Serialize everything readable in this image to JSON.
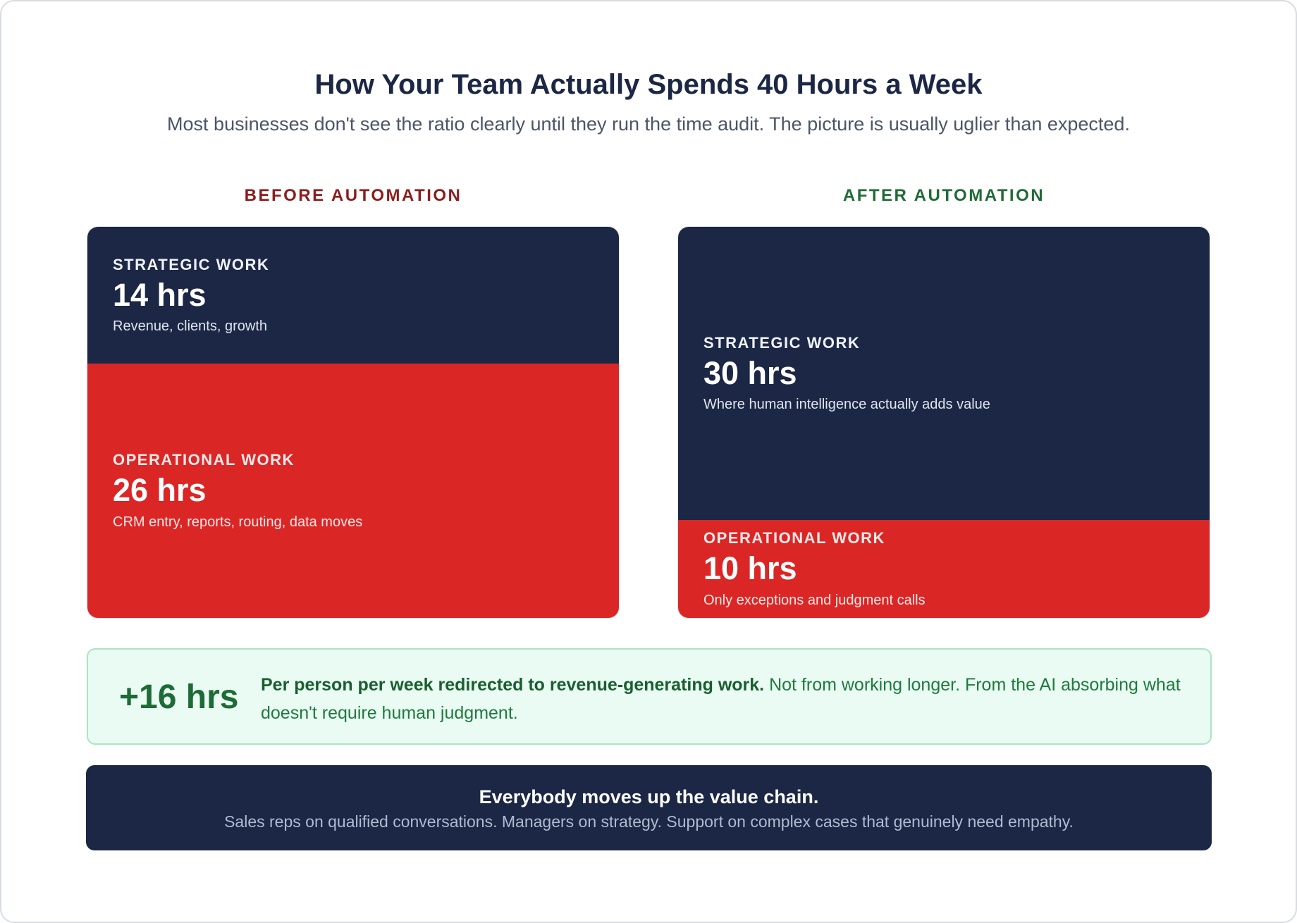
{
  "chart_data": {
    "type": "bar",
    "title": "How Your Team Actually Spends 40 Hours a Week",
    "subtitle": "Most businesses don't see the ratio clearly until they run the time audit. The picture is usually uglier than expected.",
    "categories": [
      "BEFORE AUTOMATION",
      "AFTER AUTOMATION"
    ],
    "stacked": true,
    "total_hours": 40,
    "series": [
      {
        "name": "STRATEGIC WORK",
        "values": [
          14,
          30
        ],
        "labels": [
          "14 hrs",
          "30 hrs"
        ],
        "descriptions": [
          "Revenue, clients, growth",
          "Where human intelligence actually adds value"
        ],
        "color": "#1b2744"
      },
      {
        "name": "OPERATIONAL WORK",
        "values": [
          26,
          10
        ],
        "labels": [
          "26 hrs",
          "10 hrs"
        ],
        "descriptions": [
          "CRM entry, reports, routing, data moves",
          "Only exceptions and judgment calls"
        ],
        "color": "#db2626"
      }
    ],
    "heading_colors": [
      "#8e1c1c",
      "#1f6b35"
    ]
  },
  "highlight": {
    "value": "+16 hrs",
    "bold_text": "Per person per week redirected to revenue-generating work.",
    "text": " Not from working longer. From the AI absorbing what doesn't require human judgment."
  },
  "banner": {
    "title": "Everybody moves up the value chain.",
    "subtitle": "Sales reps on qualified conversations. Managers on strategy. Support on complex cases that genuinely need empathy."
  }
}
